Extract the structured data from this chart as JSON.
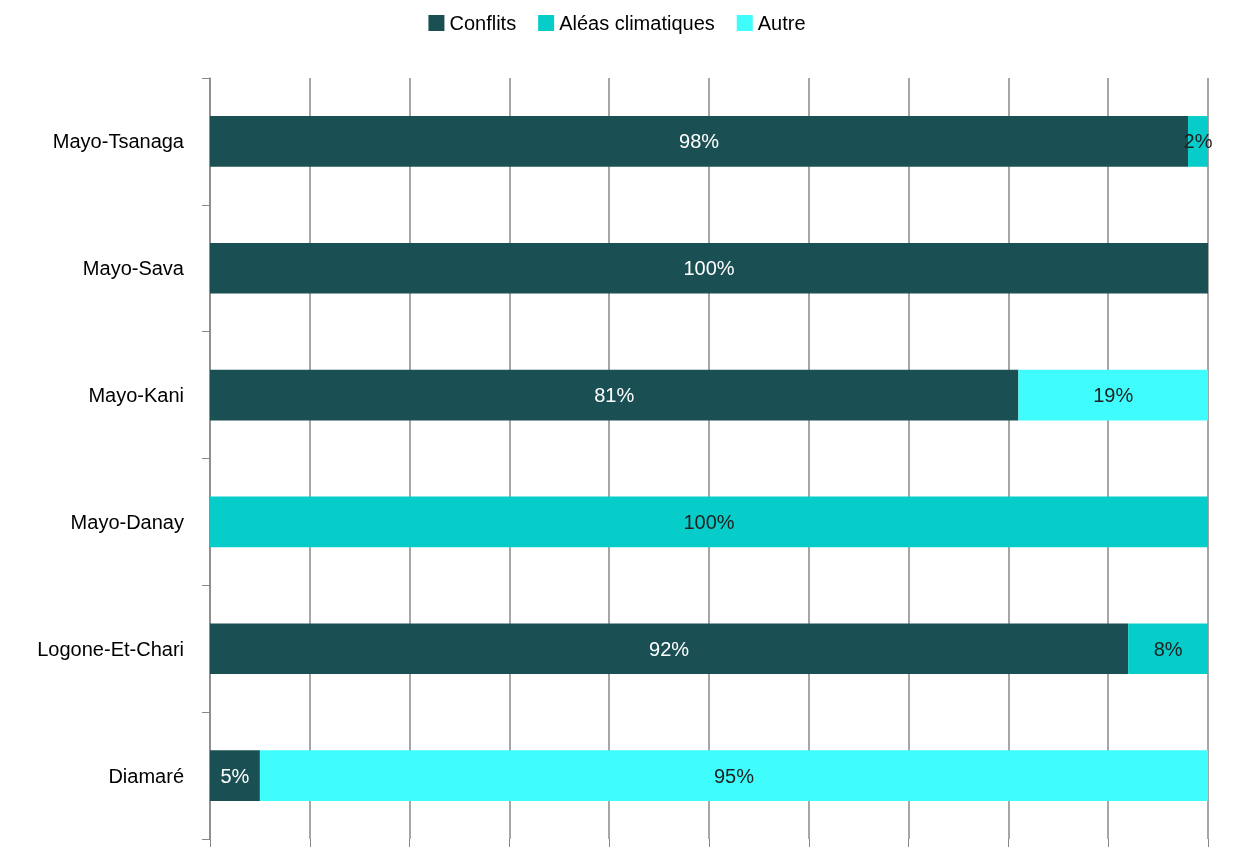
{
  "chart_data": {
    "type": "bar",
    "orientation": "horizontal",
    "stacked": true,
    "categories": [
      "Mayo-Tsanaga",
      "Mayo-Sava",
      "Mayo-Kani",
      "Mayo-Danay",
      "Logone-Et-Chari",
      "Diamaré"
    ],
    "series": [
      {
        "name": "Conflits",
        "color": "#1a5053",
        "values": [
          98,
          100,
          81,
          null,
          92,
          5
        ],
        "value_labels": [
          "98%",
          "100%",
          "81%",
          null,
          "92%",
          "5%"
        ]
      },
      {
        "name": "Aléas climatiques",
        "color": "#06cdc9",
        "values": [
          2,
          null,
          null,
          100,
          8,
          null
        ],
        "value_labels": [
          "2%",
          null,
          null,
          "100%",
          "8%",
          null
        ]
      },
      {
        "name": "Autre",
        "color": "#40fdfd",
        "values": [
          null,
          null,
          19,
          null,
          null,
          95
        ],
        "value_labels": [
          null,
          null,
          "19%",
          null,
          null,
          "95%"
        ]
      }
    ],
    "tick_labels": "y",
    "grid": "x",
    "legend": "top"
  }
}
